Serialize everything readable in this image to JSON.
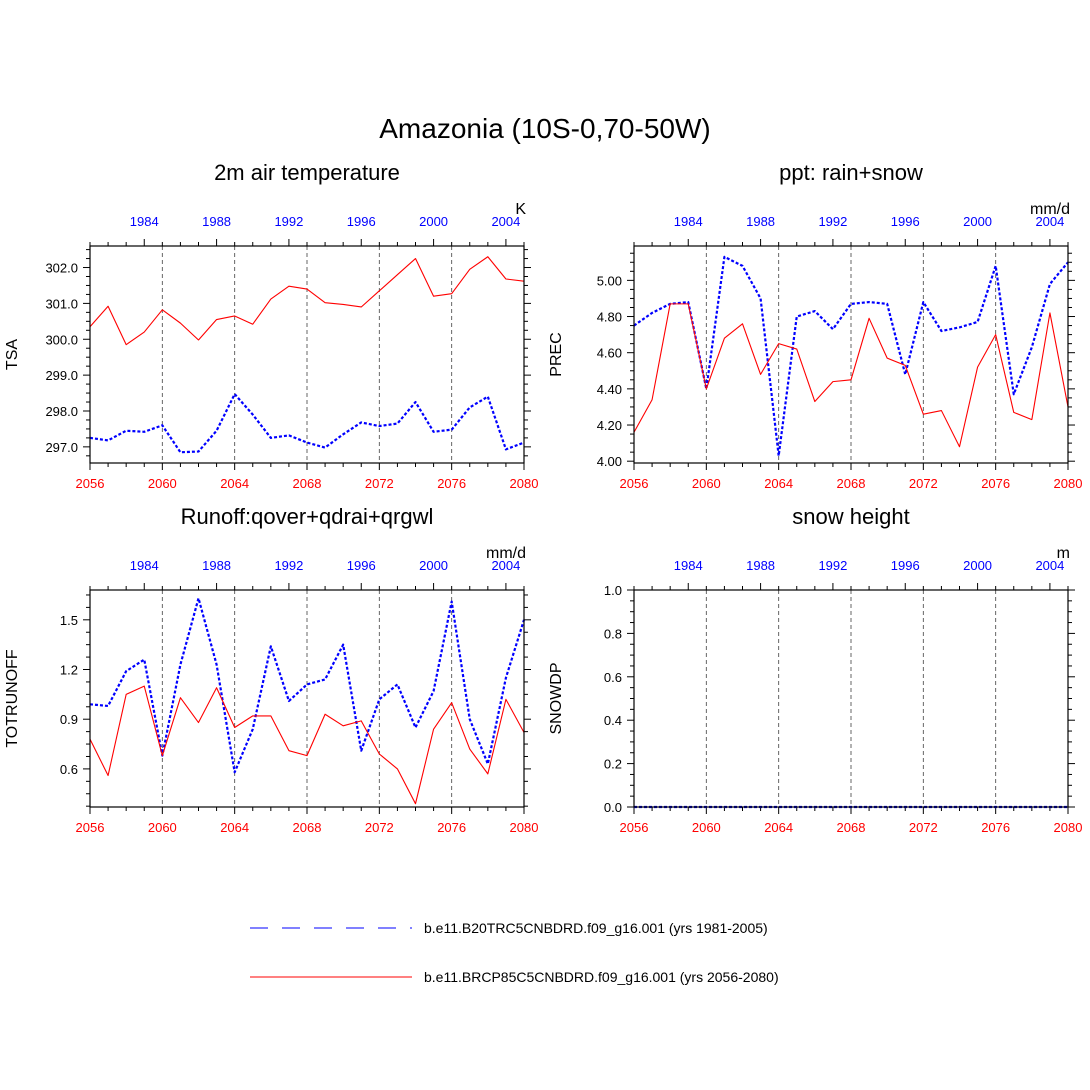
{
  "title": "Amazonia (10S-0,70-50W)",
  "colors": {
    "future": "#ff0000",
    "historical": "#0000ff",
    "axis": "#000000"
  },
  "legend": [
    {
      "name": "b.e11.B20TRC5CNBDRD.f09_g16.001 (yrs 1981-2005)",
      "style": "dashed",
      "color": "#0000ff"
    },
    {
      "name": "b.e11.BRCP85C5CNBDRD.f09_g16.001 (yrs 2056-2080)",
      "style": "solid",
      "color": "#ff0000"
    }
  ],
  "chart_data": [
    {
      "type": "line",
      "title": "2m air temperature",
      "ylabel": "TSA",
      "units": "K",
      "xlim": [
        2056,
        2080
      ],
      "ylim": [
        296.55,
        302.6
      ],
      "yticks": [
        297.0,
        298.0,
        299.0,
        300.0,
        301.0,
        302.0
      ],
      "ytick_labels": [
        "297.0",
        "298.0",
        "299.0",
        "300.0",
        "301.0",
        "302.0"
      ],
      "xticks": [
        2056,
        2060,
        2064,
        2068,
        2072,
        2076,
        2080
      ],
      "top_ticks": [
        1984,
        1988,
        1992,
        1996,
        2000,
        2004
      ],
      "gridlines_x": [
        2060,
        2064,
        2068,
        2072,
        2076
      ],
      "series": [
        {
          "name": "b.e11.B20TRC5CNBDRD.f09_g16.001 (yrs 1981-2005)",
          "axis": "top",
          "x_start": 1981,
          "values": [
            297.25,
            297.18,
            297.45,
            297.42,
            297.6,
            296.85,
            296.87,
            297.45,
            298.47,
            297.9,
            297.25,
            297.32,
            297.12,
            296.98,
            297.35,
            297.68,
            297.58,
            297.65,
            298.25,
            297.42,
            297.48,
            298.1,
            298.4,
            296.93,
            297.12
          ]
        },
        {
          "name": "b.e11.BRCP85C5CNBDRD.f09_g16.001 (yrs 2056-2080)",
          "axis": "bottom",
          "x_start": 2056,
          "values": [
            300.35,
            300.92,
            299.85,
            300.2,
            300.82,
            300.45,
            299.98,
            300.55,
            300.65,
            300.42,
            301.12,
            301.48,
            301.4,
            301.02,
            300.97,
            300.9,
            301.35,
            301.8,
            302.25,
            301.2,
            301.27,
            301.95,
            302.3,
            301.68,
            301.62
          ]
        }
      ]
    },
    {
      "type": "line",
      "title": "ppt: rain+snow",
      "ylabel": "PREC",
      "units": "mm/d",
      "xlim": [
        2056,
        2080
      ],
      "ylim": [
        3.99,
        5.19
      ],
      "yticks": [
        4.0,
        4.2,
        4.4,
        4.6,
        4.8,
        5.0
      ],
      "ytick_labels": [
        "4.00",
        "4.20",
        "4.40",
        "4.60",
        "4.80",
        "5.00"
      ],
      "xticks": [
        2056,
        2060,
        2064,
        2068,
        2072,
        2076,
        2080
      ],
      "top_ticks": [
        1984,
        1988,
        1992,
        1996,
        2000,
        2004
      ],
      "gridlines_x": [
        2060,
        2064,
        2068,
        2072,
        2076
      ],
      "series": [
        {
          "name": "b.e11.B20TRC5CNBDRD.f09_g16.001 (yrs 1981-2005)",
          "axis": "top",
          "x_start": 1981,
          "values": [
            4.75,
            4.82,
            4.87,
            4.88,
            4.4,
            5.13,
            5.08,
            4.9,
            4.03,
            4.8,
            4.83,
            4.73,
            4.87,
            4.88,
            4.87,
            4.48,
            4.88,
            4.72,
            4.74,
            4.77,
            5.08,
            4.37,
            4.63,
            4.98,
            5.1
          ]
        },
        {
          "name": "b.e11.BRCP85C5CNBDRD.f09_g16.001 (yrs 2056-2080)",
          "axis": "bottom",
          "x_start": 2056,
          "values": [
            4.16,
            4.34,
            4.87,
            4.87,
            4.4,
            4.68,
            4.76,
            4.48,
            4.65,
            4.62,
            4.33,
            4.44,
            4.45,
            4.79,
            4.57,
            4.53,
            4.26,
            4.28,
            4.08,
            4.52,
            4.7,
            4.27,
            4.23,
            4.82,
            4.3
          ]
        }
      ]
    },
    {
      "type": "line",
      "title": "Runoff:qover+qdrai+qrgwl",
      "ylabel": "TOTRUNOFF",
      "units": "mm/d",
      "xlim": [
        2056,
        2080
      ],
      "ylim": [
        0.37,
        1.68
      ],
      "yticks": [
        0.6,
        0.9,
        1.2,
        1.5
      ],
      "ytick_labels": [
        "0.6",
        "0.9",
        "1.2",
        "1.5"
      ],
      "xticks": [
        2056,
        2060,
        2064,
        2068,
        2072,
        2076,
        2080
      ],
      "top_ticks": [
        1984,
        1988,
        1992,
        1996,
        2000,
        2004
      ],
      "gridlines_x": [
        2060,
        2064,
        2068,
        2072,
        2076
      ],
      "series": [
        {
          "name": "b.e11.B20TRC5CNBDRD.f09_g16.001 (yrs 1981-2005)",
          "axis": "top",
          "x_start": 1981,
          "values": [
            0.99,
            0.98,
            1.19,
            1.26,
            0.68,
            1.23,
            1.63,
            1.23,
            0.58,
            0.84,
            1.34,
            1.01,
            1.11,
            1.14,
            1.35,
            0.71,
            1.02,
            1.11,
            0.85,
            1.07,
            1.61,
            0.9,
            0.63,
            1.15,
            1.5
          ]
        },
        {
          "name": "b.e11.BRCP85C5CNBDRD.f09_g16.001 (yrs 2056-2080)",
          "axis": "bottom",
          "x_start": 2056,
          "values": [
            0.78,
            0.56,
            1.05,
            1.1,
            0.68,
            1.03,
            0.88,
            1.09,
            0.85,
            0.92,
            0.92,
            0.71,
            0.68,
            0.93,
            0.86,
            0.89,
            0.69,
            0.6,
            0.39,
            0.84,
            1.0,
            0.72,
            0.57,
            1.02,
            0.82
          ]
        }
      ]
    },
    {
      "type": "line",
      "title": "snow height",
      "ylabel": "SNOWDP",
      "units": "m",
      "xlim": [
        2056,
        2080
      ],
      "ylim": [
        0.0,
        1.0
      ],
      "yticks": [
        0.0,
        0.2,
        0.4,
        0.6,
        0.8,
        1.0
      ],
      "ytick_labels": [
        "0.0",
        "0.2",
        "0.4",
        "0.6",
        "0.8",
        "1.0"
      ],
      "xticks": [
        2056,
        2060,
        2064,
        2068,
        2072,
        2076,
        2080
      ],
      "top_ticks": [
        1984,
        1988,
        1992,
        1996,
        2000,
        2004
      ],
      "gridlines_x": [
        2060,
        2064,
        2068,
        2072,
        2076
      ],
      "series": [
        {
          "name": "b.e11.B20TRC5CNBDRD.f09_g16.001 (yrs 1981-2005)",
          "axis": "top",
          "x_start": 1981,
          "values": [
            0,
            0,
            0,
            0,
            0,
            0,
            0,
            0,
            0,
            0,
            0,
            0,
            0,
            0,
            0,
            0,
            0,
            0,
            0,
            0,
            0,
            0,
            0,
            0,
            0
          ]
        },
        {
          "name": "b.e11.BRCP85C5CNBDRD.f09_g16.001 (yrs 2056-2080)",
          "axis": "bottom",
          "x_start": 2056,
          "values": [
            0,
            0,
            0,
            0,
            0,
            0,
            0,
            0,
            0,
            0,
            0,
            0,
            0,
            0,
            0,
            0,
            0,
            0,
            0,
            0,
            0,
            0,
            0,
            0,
            0
          ]
        }
      ]
    }
  ]
}
